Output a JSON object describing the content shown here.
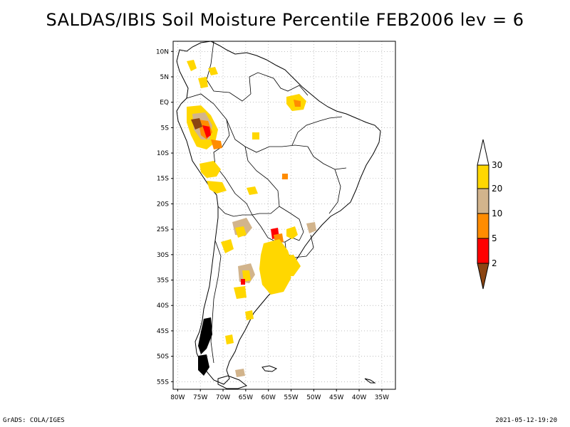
{
  "title": "SALDAS/IBIS Soil Moisture Percentile FEB2006 lev = 6",
  "footer": {
    "credit": "GrADS: COLA/IGES",
    "timestamp": "2021-05-12-19:20"
  },
  "map": {
    "lat_ticks": [
      "10N",
      "5N",
      "EQ",
      "5S",
      "10S",
      "15S",
      "20S",
      "25S",
      "30S",
      "35S",
      "40S",
      "45S",
      "50S",
      "55S"
    ],
    "lon_ticks": [
      "80W",
      "75W",
      "70W",
      "65W",
      "60W",
      "55W",
      "50W",
      "45W",
      "40W",
      "35W"
    ],
    "grid": true
  },
  "legend": {
    "labels": [
      "2",
      "5",
      "10",
      "20",
      "30"
    ],
    "colors": {
      "below_2": "#8B4513",
      "2_5": "#FF0000",
      "5_10": "#FF8C00",
      "10_20": "#D2B48C",
      "20_30": "#FFD700",
      "above_30": "#FFFFFF"
    }
  },
  "colors": {
    "coast": "#000000",
    "grid": "#999999",
    "frame": "#000000"
  }
}
